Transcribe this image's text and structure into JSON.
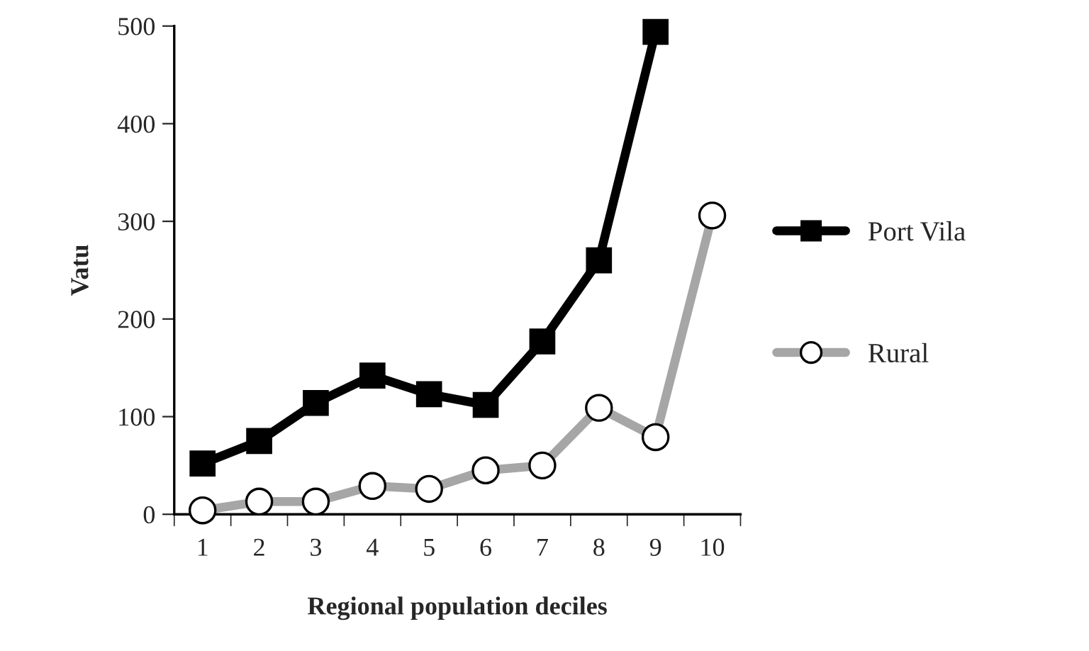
{
  "chart_data": {
    "type": "line",
    "xlabel": "Regional population deciles",
    "ylabel": "Vatu",
    "categories": [
      "1",
      "2",
      "3",
      "4",
      "5",
      "6",
      "7",
      "8",
      "9",
      "10"
    ],
    "series": [
      {
        "name": "Port Vila",
        "color": "#000000",
        "marker": "square",
        "values": [
          52,
          75,
          114,
          142,
          123,
          112,
          177,
          260,
          494,
          null
        ]
      },
      {
        "name": "Rural",
        "color": "#a6a6a6",
        "marker": "circle",
        "values": [
          4,
          13,
          13,
          29,
          26,
          45,
          50,
          109,
          79,
          306
        ]
      }
    ],
    "ylim": [
      0,
      500
    ],
    "yticks": [
      0,
      100,
      200,
      300,
      400,
      500
    ],
    "grid": false,
    "legend": "right",
    "line_style": "solid"
  }
}
